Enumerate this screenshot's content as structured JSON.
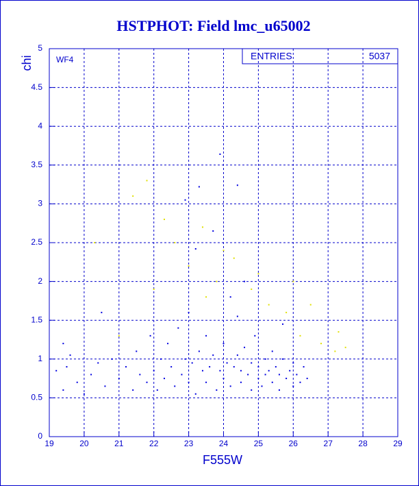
{
  "chart_data": {
    "type": "scatter",
    "title": "HSTPHOT: Field lmc_u65002",
    "x_label": "F555W",
    "y_label": "chi",
    "annotation": "WF4",
    "stats": {
      "label": "ENTRIES",
      "value": 5037
    },
    "xlim": [
      19,
      29
    ],
    "xticks": [
      19,
      20,
      21,
      22,
      23,
      24,
      25,
      26,
      27,
      28,
      29
    ],
    "ylim": [
      0,
      5
    ],
    "yticks": [
      0,
      0.5,
      1,
      1.5,
      2,
      2.5,
      3,
      3.5,
      4,
      4.5,
      5
    ],
    "grid": true,
    "series": [
      {
        "color": "#0000e0",
        "x": [
          19.2,
          19.4,
          19.5,
          19.6,
          19.4,
          19.8,
          20.0,
          20.2,
          20.4,
          20.6,
          20.8,
          20.5,
          21.0,
          21.2,
          21.4,
          21.5,
          21.6,
          21.8,
          21.9,
          22.0,
          22.1,
          22.2,
          22.3,
          22.4,
          22.5,
          22.6,
          22.7,
          22.8,
          22.9,
          23.0,
          23.0,
          23.1,
          23.2,
          23.3,
          23.3,
          23.4,
          23.5,
          23.5,
          23.6,
          23.7,
          23.7,
          23.8,
          23.9,
          23.9,
          24.0,
          24.0,
          24.1,
          24.2,
          24.2,
          24.3,
          24.4,
          24.4,
          24.5,
          24.5,
          24.6,
          24.6,
          24.7,
          24.8,
          24.8,
          24.9,
          25.0,
          25.0,
          25.1,
          25.2,
          25.2,
          25.3,
          25.4,
          25.4,
          25.5,
          25.6,
          25.6,
          25.7,
          25.8,
          25.9,
          26.0,
          26.0,
          26.1,
          26.2,
          26.3,
          26.4,
          22.9,
          23.2,
          24.4,
          25.7
        ],
        "y": [
          0.85,
          0.6,
          0.9,
          1.05,
          1.2,
          0.7,
          0.55,
          0.8,
          0.95,
          0.65,
          1.0,
          1.6,
          0.75,
          0.9,
          0.6,
          1.1,
          0.8,
          0.7,
          1.3,
          0.85,
          0.6,
          1.0,
          0.75,
          1.2,
          0.9,
          0.65,
          1.4,
          0.8,
          1.0,
          0.7,
          1.6,
          0.95,
          0.55,
          1.1,
          3.22,
          0.85,
          1.3,
          0.7,
          0.9,
          1.05,
          2.65,
          0.6,
          0.85,
          3.64,
          1.2,
          0.75,
          0.95,
          0.65,
          1.8,
          0.9,
          1.05,
          3.24,
          0.7,
          0.85,
          1.15,
          2.0,
          0.8,
          0.6,
          0.95,
          1.3,
          0.75,
          0.9,
          0.65,
          1.0,
          0.8,
          0.85,
          0.7,
          1.1,
          0.9,
          0.6,
          0.8,
          1.0,
          0.75,
          0.85,
          0.65,
          0.95,
          0.8,
          0.7,
          0.9,
          0.75,
          3.05,
          2.42,
          1.55,
          1.45
        ]
      },
      {
        "color": "#e0e000",
        "x": [
          21.4,
          21.8,
          22.3,
          22.6,
          23.0,
          23.4,
          23.8,
          24.3,
          24.8,
          25.3,
          25.8,
          26.2,
          26.8,
          27.2,
          27.5,
          26.5,
          25.0,
          22.0,
          21.0,
          20.3,
          23.5,
          24.0,
          26.0,
          27.3
        ],
        "y": [
          3.1,
          3.3,
          2.8,
          2.5,
          2.2,
          2.7,
          2.0,
          2.3,
          1.9,
          1.7,
          1.6,
          1.3,
          1.2,
          1.1,
          1.15,
          1.7,
          2.1,
          1.9,
          1.3,
          2.5,
          1.8,
          2.4,
          2.0,
          1.35
        ]
      }
    ]
  }
}
